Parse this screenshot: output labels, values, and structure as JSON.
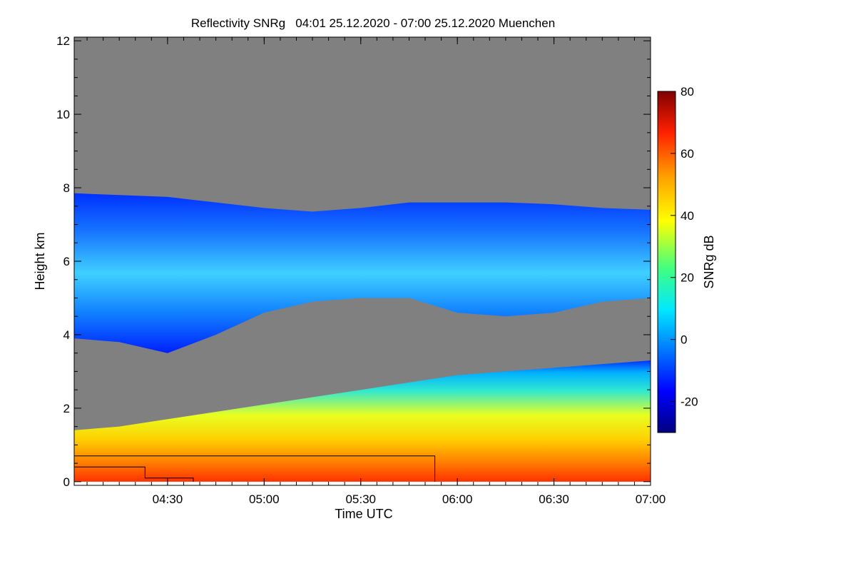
{
  "chart_data": {
    "type": "heatmap",
    "title": "Reflectivity SNRg   04:01 25.12.2020 - 07:00 25.12.2020 Muenchen",
    "xlabel": "Time UTC",
    "ylabel": "Height km",
    "colorbar_label": "SNRg dB",
    "x_range": [
      "04:01",
      "07:00"
    ],
    "x_range_minutes": [
      241,
      420
    ],
    "x_ticks": [
      {
        "label": "04:30",
        "minutes": 270
      },
      {
        "label": "05:00",
        "minutes": 300
      },
      {
        "label": "05:30",
        "minutes": 330
      },
      {
        "label": "06:00",
        "minutes": 360
      },
      {
        "label": "06:30",
        "minutes": 390
      },
      {
        "label": "07:00",
        "minutes": 420
      }
    ],
    "ylim": [
      -0.1,
      12.1
    ],
    "y_ticks": [
      0,
      2,
      4,
      6,
      8,
      10,
      12
    ],
    "colorbar_range": [
      -30,
      80
    ],
    "colorbar_ticks": [
      -20,
      0,
      20,
      40,
      60,
      80
    ],
    "colors": {
      "background_no_signal": "#808080",
      "colorscale": [
        "#000080",
        "#0000ff",
        "#0080ff",
        "#00e8ff",
        "#40ff80",
        "#ffff00",
        "#ffa000",
        "#ff2000",
        "#800000"
      ]
    },
    "upper_cloud_layer": {
      "minutes": [
        241,
        255,
        270,
        285,
        300,
        315,
        330,
        345,
        360,
        375,
        390,
        405,
        420
      ],
      "top_km": [
        7.85,
        7.8,
        7.75,
        7.6,
        7.45,
        7.35,
        7.45,
        7.6,
        7.6,
        7.6,
        7.55,
        7.45,
        7.4
      ],
      "base_km": [
        3.9,
        3.8,
        3.5,
        4.0,
        4.6,
        4.9,
        5.0,
        5.0,
        4.6,
        4.5,
        4.6,
        4.9,
        5.0
      ],
      "snr_db": [
        8,
        5,
        0,
        -4,
        -8,
        -6,
        2,
        -2,
        6,
        10,
        4,
        -2,
        -5
      ]
    },
    "lower_signal_layer": {
      "minutes": [
        241,
        255,
        270,
        285,
        300,
        315,
        330,
        345,
        360,
        375,
        390,
        405,
        420
      ],
      "top_km": [
        1.4,
        1.5,
        1.7,
        1.9,
        2.1,
        2.3,
        2.5,
        2.7,
        2.9,
        3.0,
        3.1,
        3.2,
        3.3
      ],
      "snr_db_near_ground": [
        55,
        56,
        58,
        60,
        58,
        56,
        62,
        60,
        62,
        60,
        58,
        56,
        55
      ]
    },
    "overlay_lines": [
      {
        "minutes": [
          241,
          353,
          353
        ],
        "km": [
          0.7,
          0.7,
          0.0
        ]
      },
      {
        "minutes": [
          241,
          263,
          263,
          278,
          278
        ],
        "km": [
          0.4,
          0.4,
          0.1,
          0.1,
          0.0
        ]
      }
    ]
  }
}
